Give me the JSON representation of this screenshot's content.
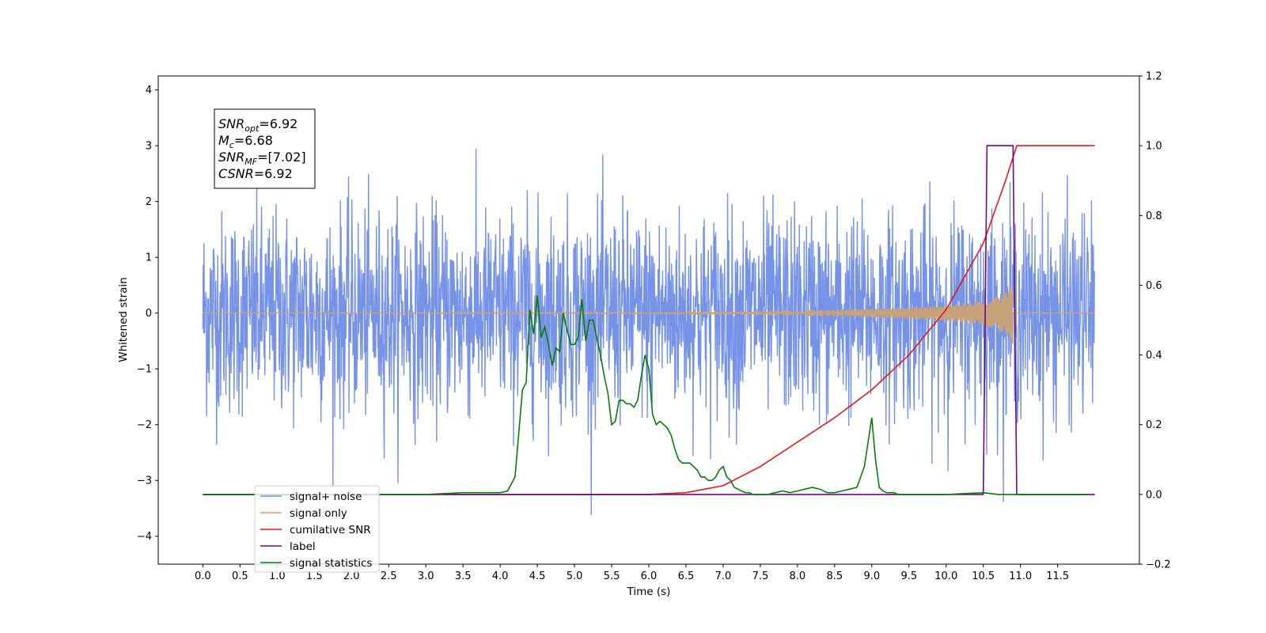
{
  "chart_data": {
    "type": "line",
    "xlabel": "Time (s)",
    "ylabel": "Whitened strain",
    "xlim": [
      -0.6,
      12.6
    ],
    "ylim": [
      -4.5,
      4.25
    ],
    "y2lim": [
      -0.2,
      1.2
    ],
    "grid": false,
    "legend_position": "lower-left",
    "x_tick_labels": [
      "0.0",
      "0.5",
      "1.0",
      "1.5",
      "2.0",
      "2.5",
      "3.0",
      "3.5",
      "4.0",
      "4.5",
      "5.0",
      "5.5",
      "6.0",
      "6.5",
      "7.0",
      "7.5",
      "8.0",
      "8.5",
      "9.0",
      "9.5",
      "10.0",
      "10.5",
      "11.0",
      "11.5"
    ],
    "y_tick_labels": [
      "−4",
      "−3",
      "−2",
      "−1",
      "0",
      "1",
      "2",
      "3",
      "4"
    ],
    "y2_tick_labels": [
      "−0.2",
      "0.0",
      "0.2",
      "0.4",
      "0.6",
      "0.8",
      "1.0",
      "1.2"
    ],
    "annotation": {
      "lines": [
        {
          "name": "SNR",
          "sub": "opt",
          "value": "=6.92"
        },
        {
          "name": "M",
          "sub": "c",
          "value": "=6.68"
        },
        {
          "name": "SNR",
          "sub": "MF",
          "value": "=[7.02]"
        },
        {
          "name": "CSNR",
          "sub": "",
          "value": "=6.92"
        }
      ]
    },
    "series": [
      {
        "name": "signal+ noise",
        "color": "#6f8de6",
        "axis": "left",
        "description": "noisy whitened strain, amplitude roughly ±2.5 with spikes to ±4, spanning 0 to 12 s"
      },
      {
        "name": "signal only",
        "color": "#c8a27a",
        "axis": "left",
        "description": "chirp signal growing from ~7 s to ~10.9 s, peak amplitude ~0.6",
        "envelope_x": [
          6.5,
          7.0,
          7.5,
          8.0,
          8.5,
          9.0,
          9.5,
          10.0,
          10.3,
          10.5,
          10.7,
          10.85,
          10.9
        ],
        "envelope_y": [
          0.01,
          0.02,
          0.03,
          0.05,
          0.06,
          0.08,
          0.1,
          0.14,
          0.18,
          0.22,
          0.3,
          0.45,
          0.6
        ]
      },
      {
        "name": "cumilative SNR",
        "color": "#e01b1b",
        "axis": "right",
        "x": [
          0,
          6.0,
          6.5,
          7.0,
          7.5,
          8.0,
          8.5,
          9.0,
          9.5,
          10.0,
          10.5,
          10.8,
          10.95,
          12.0
        ],
        "y": [
          0.0,
          0.0,
          0.005,
          0.025,
          0.08,
          0.15,
          0.22,
          0.3,
          0.4,
          0.53,
          0.72,
          0.9,
          1.0,
          1.0
        ]
      },
      {
        "name": "label",
        "color": "#6d0a78",
        "axis": "right",
        "x": [
          0,
          10.5,
          10.55,
          10.9,
          10.95,
          12.0
        ],
        "y": [
          0.0,
          0.0,
          1.0,
          1.0,
          0.0,
          0.0
        ]
      },
      {
        "name": "signal statistics",
        "color": "#0a7a0a",
        "axis": "right",
        "x": [
          0,
          3.0,
          3.5,
          4.0,
          4.1,
          4.2,
          4.3,
          4.35,
          4.4,
          4.45,
          4.5,
          4.55,
          4.6,
          4.65,
          4.7,
          4.75,
          4.8,
          4.85,
          4.9,
          4.95,
          5.0,
          5.05,
          5.1,
          5.15,
          5.2,
          5.25,
          5.3,
          5.35,
          5.4,
          5.45,
          5.5,
          5.55,
          5.6,
          5.65,
          5.7,
          5.75,
          5.8,
          5.85,
          5.9,
          5.95,
          6.0,
          6.05,
          6.1,
          6.15,
          6.2,
          6.25,
          6.3,
          6.35,
          6.4,
          6.45,
          6.5,
          6.55,
          6.6,
          6.65,
          6.7,
          6.75,
          6.8,
          6.85,
          6.9,
          6.95,
          7.0,
          7.05,
          7.1,
          7.15,
          7.2,
          7.25,
          7.3,
          7.35,
          7.4,
          7.45,
          7.5,
          7.6,
          7.7,
          7.8,
          7.9,
          8.0,
          8.1,
          8.2,
          8.3,
          8.4,
          8.5,
          8.6,
          8.7,
          8.8,
          8.9,
          9.0,
          9.05,
          9.1,
          9.15,
          9.2,
          9.25,
          9.3,
          9.35,
          9.4,
          9.45,
          9.5,
          9.6,
          9.8,
          10.0,
          10.5,
          10.7,
          11.0,
          11.5,
          11.9
        ],
        "y": [
          0,
          0.0,
          0.005,
          0.005,
          0.01,
          0.05,
          0.3,
          0.32,
          0.53,
          0.46,
          0.57,
          0.45,
          0.48,
          0.43,
          0.37,
          0.42,
          0.41,
          0.52,
          0.47,
          0.43,
          0.43,
          0.45,
          0.56,
          0.44,
          0.5,
          0.5,
          0.45,
          0.4,
          0.34,
          0.29,
          0.2,
          0.21,
          0.27,
          0.27,
          0.26,
          0.26,
          0.25,
          0.27,
          0.34,
          0.4,
          0.36,
          0.23,
          0.2,
          0.21,
          0.2,
          0.19,
          0.17,
          0.13,
          0.1,
          0.09,
          0.09,
          0.09,
          0.08,
          0.07,
          0.05,
          0.05,
          0.04,
          0.04,
          0.05,
          0.07,
          0.08,
          0.05,
          0.04,
          0.02,
          0.015,
          0.01,
          0.005,
          0.005,
          0.0,
          0.0,
          0.0,
          0.0,
          0.005,
          0.01,
          0.005,
          0.01,
          0.015,
          0.02,
          0.015,
          0.005,
          0.005,
          0.01,
          0.015,
          0.02,
          0.08,
          0.22,
          0.1,
          0.02,
          0.01,
          0.005,
          0.005,
          0.005,
          0.0,
          0.0,
          0.0,
          0.0,
          0.0,
          0.0,
          0.0,
          0.005,
          0.0,
          0.0,
          0.0,
          0.0
        ]
      }
    ]
  }
}
